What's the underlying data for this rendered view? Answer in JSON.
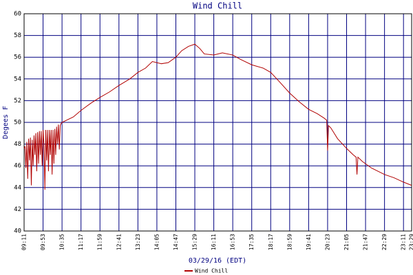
{
  "chart_data": {
    "type": "line",
    "title": "Wind Chill",
    "y_label": "Degees F",
    "x_label": "03/29/16 (EDT)",
    "x": [
      551,
      553,
      555,
      557,
      559,
      561,
      563,
      565,
      567,
      569,
      571,
      573,
      575,
      577,
      579,
      581,
      583,
      585,
      587,
      589,
      591,
      593,
      595,
      597,
      599,
      601,
      603,
      605,
      607,
      609,
      611,
      613,
      615,
      617,
      619,
      621,
      623,
      625,
      627,
      629,
      631,
      633,
      635,
      660,
      677,
      700,
      719,
      740,
      761,
      785,
      803,
      820,
      835,
      845,
      855,
      870,
      887,
      900,
      915,
      929,
      940,
      950,
      971,
      990,
      1013,
      1030,
      1055,
      1080,
      1097,
      1115,
      1139,
      1160,
      1181,
      1200,
      1215,
      1221,
      1223,
      1225,
      1230,
      1245,
      1265,
      1280,
      1286,
      1288,
      1290,
      1300,
      1320,
      1349,
      1370,
      1391,
      1409
    ],
    "series": [
      {
        "name": "Wind Chill",
        "color": "#b00000",
        "values": [
          47.6,
          47.8,
          45.8,
          48.2,
          44.8,
          48.5,
          46.5,
          48.6,
          44.2,
          48.4,
          46,
          48.8,
          47,
          49,
          45.5,
          49.1,
          46.2,
          49.2,
          47,
          49.2,
          46,
          49.3,
          48,
          43.8,
          49.3,
          46.5,
          49.3,
          45.5,
          49.3,
          47,
          49.3,
          45.2,
          49.3,
          46.2,
          49.4,
          47,
          49.6,
          48,
          49.8,
          47.5,
          49.7,
          49.9,
          50.0,
          50.5,
          51.1,
          51.8,
          52.3,
          52.8,
          53.4,
          54,
          54.6,
          55,
          55.6,
          55.5,
          55.4,
          55.5,
          56,
          56.6,
          57,
          57.2,
          56.8,
          56.3,
          56.2,
          56.4,
          56.2,
          55.8,
          55.3,
          55,
          54.6,
          53.8,
          52.7,
          51.9,
          51.2,
          50.8,
          50.4,
          50.2,
          47.4,
          49.7,
          49.5,
          48.5,
          47.6,
          47,
          46.8,
          45.2,
          46.8,
          46.4,
          45.8,
          45.2,
          44.9,
          44.5,
          44.2
        ]
      }
    ],
    "xlim": [
      551,
      1409
    ],
    "xticks": [
      {
        "value": 551,
        "label": "09:11"
      },
      {
        "value": 593,
        "label": "09:53"
      },
      {
        "value": 635,
        "label": "10:35"
      },
      {
        "value": 677,
        "label": "11:17"
      },
      {
        "value": 719,
        "label": "11:59"
      },
      {
        "value": 761,
        "label": "12:41"
      },
      {
        "value": 803,
        "label": "13:23"
      },
      {
        "value": 845,
        "label": "14:05"
      },
      {
        "value": 887,
        "label": "14:47"
      },
      {
        "value": 929,
        "label": "15:29"
      },
      {
        "value": 971,
        "label": "16:11"
      },
      {
        "value": 1013,
        "label": "16:53"
      },
      {
        "value": 1055,
        "label": "17:35"
      },
      {
        "value": 1097,
        "label": "18:17"
      },
      {
        "value": 1139,
        "label": "18:59"
      },
      {
        "value": 1181,
        "label": "19:41"
      },
      {
        "value": 1223,
        "label": "20:23"
      },
      {
        "value": 1265,
        "label": "21:05"
      },
      {
        "value": 1307,
        "label": "21:47"
      },
      {
        "value": 1349,
        "label": "22:29"
      },
      {
        "value": 1391,
        "label": "23:11"
      },
      {
        "value": 1409,
        "label": "23:29"
      }
    ],
    "ylim": [
      40,
      60
    ],
    "yticks": [
      40,
      42,
      44,
      46,
      48,
      50,
      52,
      54,
      56,
      58,
      60
    ],
    "grid": true,
    "grid_color": "#000080"
  }
}
